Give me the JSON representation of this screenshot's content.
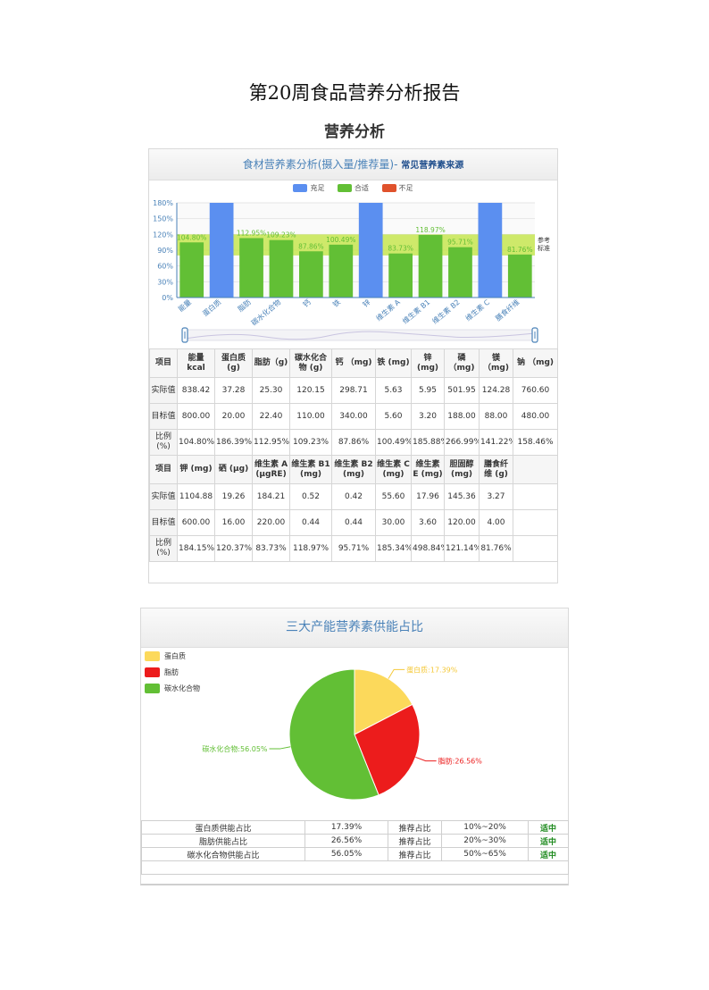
{
  "doc_title": "第20周食品营养分析报告",
  "section_title": "营养分析",
  "bar_panel": {
    "title": "食材营养素分析(摄入量/推荐量)-",
    "title_note": "常见营养素来源",
    "legend": [
      {
        "label": "充足",
        "color": "#5b8ff0"
      },
      {
        "label": "合适",
        "color": "#62bf35"
      },
      {
        "label": "不足",
        "color": "#e0522c"
      }
    ],
    "reference_label_1": "参考",
    "reference_label_2": "标准"
  },
  "chart_data": {
    "type": "bar",
    "categories": [
      "能量",
      "蛋白质",
      "脂肪",
      "碳水化合物",
      "钙",
      "铁",
      "锌",
      "维生素 A",
      "维生素 B1",
      "维生素 B2",
      "维生素 C",
      "膳食纤维"
    ],
    "values": [
      104.8,
      186.39,
      112.95,
      109.23,
      87.86,
      100.49,
      185.88,
      83.73,
      118.97,
      95.71,
      185.34,
      81.76
    ],
    "status": [
      "合适",
      "充足",
      "合适",
      "合适",
      "合适",
      "合适",
      "充足",
      "合适",
      "合适",
      "合适",
      "充足",
      "合适"
    ],
    "data_labels": [
      "104.80%",
      "",
      "112.95%",
      "109.23%",
      "87.86%",
      "100.49%",
      "",
      "83.73%",
      "118.97%",
      "95.71%",
      "",
      "81.76%"
    ],
    "y_ticks": [
      "0%",
      "30%",
      "60%",
      "90%",
      "120%",
      "150%",
      "180%"
    ],
    "ylim": [
      0,
      180
    ],
    "reference_band": [
      80,
      120
    ],
    "legend_position": "top-center"
  },
  "table1": {
    "rows": [
      [
        "项目",
        "能量 kcal",
        "蛋白质 (g)",
        "脂肪（g)",
        "碳水化合物 (g)",
        "钙 （mg)",
        "铁 (mg)",
        "锌 (mg)",
        "磷 （mg)",
        "镁 （mg)",
        "钠 （mg)"
      ],
      [
        "实际值",
        "838.42",
        "37.28",
        "25.30",
        "120.15",
        "298.71",
        "5.63",
        "5.95",
        "501.95",
        "124.28",
        "760.60"
      ],
      [
        "目标值",
        "800.00",
        "20.00",
        "22.40",
        "110.00",
        "340.00",
        "5.60",
        "3.20",
        "188.00",
        "88.00",
        "480.00"
      ],
      [
        "比例 (%)",
        "104.80%",
        "186.39%",
        "112.95%",
        "109.23%",
        "87.86%",
        "100.49%",
        "185.88%",
        "266.99%",
        "141.22%",
        "158.46%"
      ],
      [
        "项目",
        "钾 (mg)",
        "硒 (µg)",
        "维生素 A (µgRE)",
        "维生素 B1 (mg)",
        "维生素 B2 (mg)",
        "维生素 C (mg)",
        "维生素 E (mg)",
        "胆固醇 (mg)",
        "膳食纤维 (g)",
        ""
      ],
      [
        "实际值",
        "1104.88",
        "19.26",
        "184.21",
        "0.52",
        "0.42",
        "55.60",
        "17.96",
        "145.36",
        "3.27",
        ""
      ],
      [
        "目标值",
        "600.00",
        "16.00",
        "220.00",
        "0.44",
        "0.44",
        "30.00",
        "3.60",
        "120.00",
        "4.00",
        ""
      ],
      [
        "比例 (%)",
        "184.15%",
        "120.37%",
        "83.73%",
        "118.97%",
        "95.71%",
        "185.34%",
        "498.84%",
        "121.14%",
        "81.76%",
        ""
      ]
    ]
  },
  "pie_panel": {
    "title": "三大产能营养素供能占比"
  },
  "pie_data": {
    "type": "pie",
    "slices": [
      {
        "name": "蛋白质",
        "value": 17.39,
        "label": "蛋白质:17.39%",
        "color": "#fcd95b"
      },
      {
        "name": "脂肪",
        "value": 26.56,
        "label": "脂肪:26.56%",
        "color": "#ec1c1c"
      },
      {
        "name": "碳水化合物",
        "value": 56.05,
        "label": "碳水化合物:56.05%",
        "color": "#62bf35"
      }
    ],
    "legend_position": "top-left"
  },
  "ratio_table": {
    "rows": [
      [
        "蛋白质供能占比",
        "17.39%",
        "推荐占比",
        "10%~20%",
        "适中"
      ],
      [
        "脂肪供能占比",
        "26.56%",
        "推荐占比",
        "20%~30%",
        "适中"
      ],
      [
        "碳水化合物供能占比",
        "56.05%",
        "推荐占比",
        "50%~65%",
        "适中"
      ]
    ]
  }
}
